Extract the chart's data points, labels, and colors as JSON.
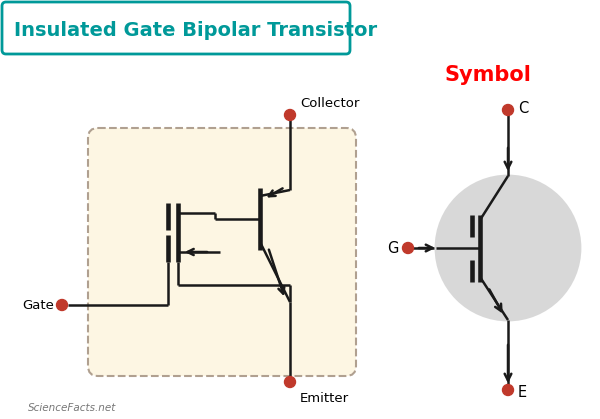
{
  "title": "Insulated Gate Bipolar Transistor",
  "title_color": "#009999",
  "title_box_color": "#009999",
  "title_bg": "#ffffff",
  "bg_color": "#ffffff",
  "symbol_label": "Symbol",
  "symbol_color": "#ff0000",
  "terminal_dot_color": "#c0392b",
  "line_color": "#1a1a1a",
  "box_bg": "#fdf6e3",
  "box_border": "#b0a090",
  "label_gate": "Gate",
  "label_collector": "Collector",
  "label_emitter": "Emitter",
  "label_c": "C",
  "label_g": "G",
  "label_e": "E",
  "circle_fill": "#d8d8d8",
  "circle_edge": "#1a1a1a",
  "watermark": "ScienceFacts.net"
}
